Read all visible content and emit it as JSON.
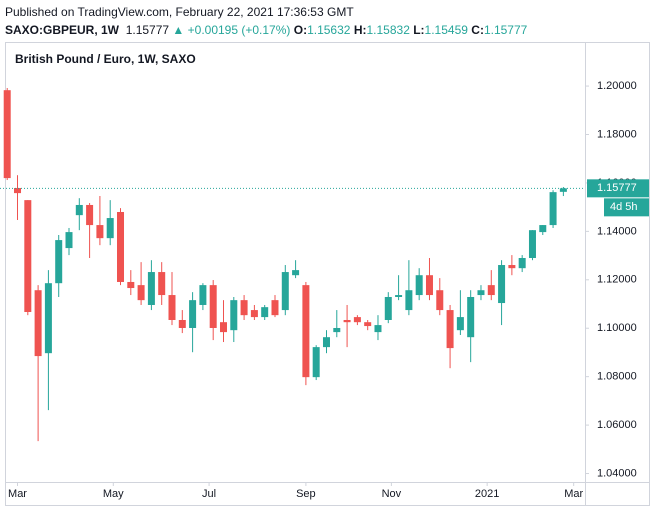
{
  "header": {
    "published": "Published on TradingView.com, February 22, 2021 17:36:53 GMT",
    "symbol": "SAXO:GBPEUR, 1W",
    "last": "1.15777",
    "change": "▲ +0.00195 (+0.17%)",
    "ohlc": [
      {
        "label": "O:",
        "value": "1.15632"
      },
      {
        "label": "H:",
        "value": "1.15832"
      },
      {
        "label": "L:",
        "value": "1.15459"
      },
      {
        "label": "C:",
        "value": "1.15777"
      }
    ]
  },
  "chart_data": {
    "type": "candlestick",
    "title": "British Pound / Euro, 1W, SAXO",
    "up_color": "#26a69a",
    "down_color": "#ef5350",
    "countdown": "4d 5h",
    "open": [
      1.1983,
      1.1579,
      1.1529,
      1.1157,
      1.0897,
      1.1186,
      1.1331,
      1.1467,
      1.1509,
      1.1426,
      1.1372,
      1.148,
      1.1191,
      1.1178,
      1.1096,
      1.1232,
      1.1137,
      1.1034,
      1.1001,
      1.1096,
      1.1178,
      1.1025,
      1.0992,
      1.1116,
      1.1075,
      1.1046,
      1.1116,
      1.1075,
      1.1219,
      1.1178,
      1.0798,
      1.0922,
      1.0984,
      1.1034,
      1.1046,
      1.1025,
      1.0984,
      1.1034,
      1.1129,
      1.1075,
      1.1137,
      1.1219,
      1.1157,
      1.1075,
      1.0992,
      1.0963,
      1.1137,
      1.1178,
      1.1104,
      1.1261,
      1.1248,
      1.129,
      1.1397,
      1.1426,
      1.15632
    ],
    "high": [
      1.1992,
      1.1632,
      1.1529,
      1.1178,
      1.124,
      1.1385,
      1.1414,
      1.1537,
      1.1517,
      1.1546,
      1.1529,
      1.1496,
      1.124,
      1.1273,
      1.1281,
      1.1273,
      1.1232,
      1.1075,
      1.1149,
      1.1186,
      1.1199,
      1.1116,
      1.1129,
      1.1137,
      1.1096,
      1.1096,
      1.1137,
      1.1261,
      1.1281,
      1.1191,
      1.093,
      1.0992,
      1.1075,
      1.1096,
      1.1054,
      1.1034,
      1.1054,
      1.1149,
      1.1219,
      1.1281,
      1.1248,
      1.129,
      1.1207,
      1.1096,
      1.1157,
      1.1157,
      1.1178,
      1.124,
      1.1281,
      1.1302,
      1.1302,
      1.1405,
      1.1426,
      1.157,
      1.15832
    ],
    "low": [
      1.1612,
      1.1447,
      1.1054,
      1.0534,
      1.0662,
      1.1129,
      1.1302,
      1.1405,
      1.129,
      1.1343,
      1.1343,
      1.1178,
      1.1137,
      1.1096,
      1.1075,
      1.1096,
      1.1013,
      1.098,
      1.0901,
      1.1075,
      1.0951,
      1.0943,
      1.0943,
      1.1034,
      1.1034,
      1.1034,
      1.1046,
      1.1054,
      1.1207,
      1.0765,
      1.0786,
      1.0897,
      1.0963,
      1.0922,
      1.1013,
      1.0992,
      1.0951,
      1.1021,
      1.1116,
      1.1054,
      1.1116,
      1.1116,
      1.1054,
      1.0835,
      1.0972,
      1.086,
      1.1116,
      1.1116,
      1.1013,
      1.1219,
      1.1232,
      1.1281,
      1.1385,
      1.1414,
      1.15459
    ],
    "close": [
      1.162,
      1.1558,
      1.1067,
      1.0885,
      1.1186,
      1.1364,
      1.1397,
      1.1509,
      1.1426,
      1.1372,
      1.1455,
      1.1191,
      1.1166,
      1.1116,
      1.1232,
      1.1137,
      1.1034,
      1.1001,
      1.1116,
      1.1178,
      1.1001,
      1.0984,
      1.1116,
      1.1054,
      1.1046,
      1.1087,
      1.1054,
      1.1232,
      1.124,
      1.0798,
      1.0922,
      1.0963,
      1.1001,
      1.1025,
      1.1025,
      1.1009,
      1.1013,
      1.1129,
      1.1137,
      1.1157,
      1.1219,
      1.1137,
      1.1075,
      1.0918,
      1.1046,
      1.1129,
      1.1157,
      1.1137,
      1.1261,
      1.1248,
      1.129,
      1.1405,
      1.1426,
      1.1562,
      1.15777
    ],
    "xlim": [
      -0.7,
      56.1
    ],
    "xticks": [
      {
        "value": 1,
        "label": "Mar"
      },
      {
        "value": 10.3,
        "label": "May"
      },
      {
        "value": 19.6,
        "label": "Jul"
      },
      {
        "value": 29,
        "label": "Sep"
      },
      {
        "value": 37.3,
        "label": "Nov"
      },
      {
        "value": 46.6,
        "label": "2021"
      },
      {
        "value": 55,
        "label": "Mar"
      }
    ],
    "ylim": [
      1.0365,
      1.2182
    ],
    "yticks": [
      {
        "value": 1.04,
        "label": "1.04000"
      },
      {
        "value": 1.06,
        "label": "1.06000"
      },
      {
        "value": 1.08,
        "label": "1.08000"
      },
      {
        "value": 1.1,
        "label": "1.10000"
      },
      {
        "value": 1.12,
        "label": "1.12000"
      },
      {
        "value": 1.14,
        "label": "1.14000"
      },
      {
        "value": 1.16,
        "label": "1.16000"
      },
      {
        "value": 1.18,
        "label": "1.18000"
      },
      {
        "value": 1.2,
        "label": "1.20000"
      }
    ]
  }
}
